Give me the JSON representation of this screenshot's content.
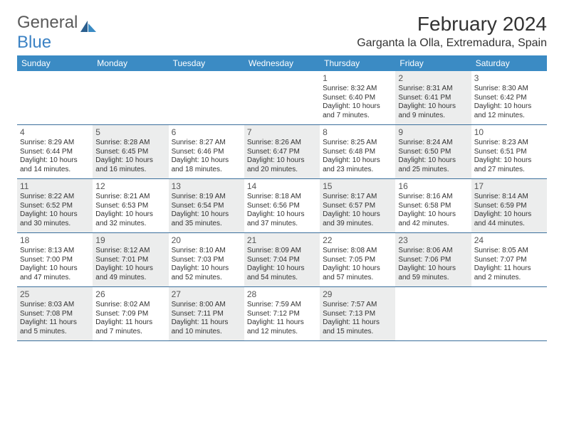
{
  "logo": {
    "text1": "General",
    "text2": "Blue"
  },
  "title": "February 2024",
  "location": "Garganta la Olla, Extremadura, Spain",
  "colors": {
    "header_bg": "#3b8bc4",
    "header_fg": "#ffffff",
    "row_border": "#3b6f9c",
    "shaded_bg": "#eceded",
    "logo_blue": "#3b82c4"
  },
  "weekdays": [
    "Sunday",
    "Monday",
    "Tuesday",
    "Wednesday",
    "Thursday",
    "Friday",
    "Saturday"
  ],
  "weeks": [
    [
      null,
      null,
      null,
      null,
      {
        "n": "1",
        "rise": "Sunrise: 8:32 AM",
        "set": "Sunset: 6:40 PM",
        "day": "Daylight: 10 hours and 7 minutes.",
        "sh": false
      },
      {
        "n": "2",
        "rise": "Sunrise: 8:31 AM",
        "set": "Sunset: 6:41 PM",
        "day": "Daylight: 10 hours and 9 minutes.",
        "sh": true
      },
      {
        "n": "3",
        "rise": "Sunrise: 8:30 AM",
        "set": "Sunset: 6:42 PM",
        "day": "Daylight: 10 hours and 12 minutes.",
        "sh": false
      }
    ],
    [
      {
        "n": "4",
        "rise": "Sunrise: 8:29 AM",
        "set": "Sunset: 6:44 PM",
        "day": "Daylight: 10 hours and 14 minutes.",
        "sh": false
      },
      {
        "n": "5",
        "rise": "Sunrise: 8:28 AM",
        "set": "Sunset: 6:45 PM",
        "day": "Daylight: 10 hours and 16 minutes.",
        "sh": true
      },
      {
        "n": "6",
        "rise": "Sunrise: 8:27 AM",
        "set": "Sunset: 6:46 PM",
        "day": "Daylight: 10 hours and 18 minutes.",
        "sh": false
      },
      {
        "n": "7",
        "rise": "Sunrise: 8:26 AM",
        "set": "Sunset: 6:47 PM",
        "day": "Daylight: 10 hours and 20 minutes.",
        "sh": true
      },
      {
        "n": "8",
        "rise": "Sunrise: 8:25 AM",
        "set": "Sunset: 6:48 PM",
        "day": "Daylight: 10 hours and 23 minutes.",
        "sh": false
      },
      {
        "n": "9",
        "rise": "Sunrise: 8:24 AM",
        "set": "Sunset: 6:50 PM",
        "day": "Daylight: 10 hours and 25 minutes.",
        "sh": true
      },
      {
        "n": "10",
        "rise": "Sunrise: 8:23 AM",
        "set": "Sunset: 6:51 PM",
        "day": "Daylight: 10 hours and 27 minutes.",
        "sh": false
      }
    ],
    [
      {
        "n": "11",
        "rise": "Sunrise: 8:22 AM",
        "set": "Sunset: 6:52 PM",
        "day": "Daylight: 10 hours and 30 minutes.",
        "sh": true
      },
      {
        "n": "12",
        "rise": "Sunrise: 8:21 AM",
        "set": "Sunset: 6:53 PM",
        "day": "Daylight: 10 hours and 32 minutes.",
        "sh": false
      },
      {
        "n": "13",
        "rise": "Sunrise: 8:19 AM",
        "set": "Sunset: 6:54 PM",
        "day": "Daylight: 10 hours and 35 minutes.",
        "sh": true
      },
      {
        "n": "14",
        "rise": "Sunrise: 8:18 AM",
        "set": "Sunset: 6:56 PM",
        "day": "Daylight: 10 hours and 37 minutes.",
        "sh": false
      },
      {
        "n": "15",
        "rise": "Sunrise: 8:17 AM",
        "set": "Sunset: 6:57 PM",
        "day": "Daylight: 10 hours and 39 minutes.",
        "sh": true
      },
      {
        "n": "16",
        "rise": "Sunrise: 8:16 AM",
        "set": "Sunset: 6:58 PM",
        "day": "Daylight: 10 hours and 42 minutes.",
        "sh": false
      },
      {
        "n": "17",
        "rise": "Sunrise: 8:14 AM",
        "set": "Sunset: 6:59 PM",
        "day": "Daylight: 10 hours and 44 minutes.",
        "sh": true
      }
    ],
    [
      {
        "n": "18",
        "rise": "Sunrise: 8:13 AM",
        "set": "Sunset: 7:00 PM",
        "day": "Daylight: 10 hours and 47 minutes.",
        "sh": false
      },
      {
        "n": "19",
        "rise": "Sunrise: 8:12 AM",
        "set": "Sunset: 7:01 PM",
        "day": "Daylight: 10 hours and 49 minutes.",
        "sh": true
      },
      {
        "n": "20",
        "rise": "Sunrise: 8:10 AM",
        "set": "Sunset: 7:03 PM",
        "day": "Daylight: 10 hours and 52 minutes.",
        "sh": false
      },
      {
        "n": "21",
        "rise": "Sunrise: 8:09 AM",
        "set": "Sunset: 7:04 PM",
        "day": "Daylight: 10 hours and 54 minutes.",
        "sh": true
      },
      {
        "n": "22",
        "rise": "Sunrise: 8:08 AM",
        "set": "Sunset: 7:05 PM",
        "day": "Daylight: 10 hours and 57 minutes.",
        "sh": false
      },
      {
        "n": "23",
        "rise": "Sunrise: 8:06 AM",
        "set": "Sunset: 7:06 PM",
        "day": "Daylight: 10 hours and 59 minutes.",
        "sh": true
      },
      {
        "n": "24",
        "rise": "Sunrise: 8:05 AM",
        "set": "Sunset: 7:07 PM",
        "day": "Daylight: 11 hours and 2 minutes.",
        "sh": false
      }
    ],
    [
      {
        "n": "25",
        "rise": "Sunrise: 8:03 AM",
        "set": "Sunset: 7:08 PM",
        "day": "Daylight: 11 hours and 5 minutes.",
        "sh": true
      },
      {
        "n": "26",
        "rise": "Sunrise: 8:02 AM",
        "set": "Sunset: 7:09 PM",
        "day": "Daylight: 11 hours and 7 minutes.",
        "sh": false
      },
      {
        "n": "27",
        "rise": "Sunrise: 8:00 AM",
        "set": "Sunset: 7:11 PM",
        "day": "Daylight: 11 hours and 10 minutes.",
        "sh": true
      },
      {
        "n": "28",
        "rise": "Sunrise: 7:59 AM",
        "set": "Sunset: 7:12 PM",
        "day": "Daylight: 11 hours and 12 minutes.",
        "sh": false
      },
      {
        "n": "29",
        "rise": "Sunrise: 7:57 AM",
        "set": "Sunset: 7:13 PM",
        "day": "Daylight: 11 hours and 15 minutes.",
        "sh": true
      },
      null,
      null
    ]
  ]
}
